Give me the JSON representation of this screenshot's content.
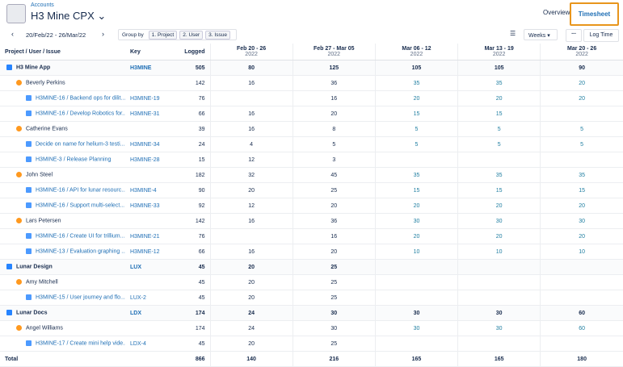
{
  "header": {
    "breadcrumb": "Accounts",
    "title": "H3 Mine CPX",
    "tabs": [
      "Overview",
      "Timesheet"
    ]
  },
  "toolbar": {
    "date_range": "20/Feb/22 - 26/Mar/22",
    "group_by": "Group by",
    "chips": [
      "1. Project",
      "2. User",
      "3. Issue"
    ],
    "period": "Weeks",
    "more": "...",
    "log_time": "Log Time"
  },
  "table": {
    "columns": [
      "Project / User / Issue",
      "Key",
      "Logged"
    ],
    "weeks": [
      {
        "range": "Feb 20 - 26",
        "year": "2022"
      },
      {
        "range": "Feb 27 - Mar 05",
        "year": "2022"
      },
      {
        "range": "Mar 06 - 12",
        "year": "2022"
      },
      {
        "range": "Mar 13 - 19",
        "year": "2022"
      },
      {
        "range": "Mar 20 - 26",
        "year": "2022"
      }
    ],
    "rows": [
      {
        "level": "project",
        "name": "H3 Mine App",
        "key": "H3MINE",
        "logged": 505,
        "weeks": [
          80,
          125,
          105,
          105,
          90
        ]
      },
      {
        "level": "user",
        "name": "Beverly Perkins",
        "key": null,
        "logged": 142,
        "weeks": [
          16,
          36,
          35,
          35,
          20
        ]
      },
      {
        "level": "issue",
        "name": "H3MINE-16 / Backend ops for dilit...",
        "key": "H3MINE-19",
        "logged": 76,
        "weeks": [
          null,
          16,
          20,
          20,
          20
        ]
      },
      {
        "level": "issue",
        "name": "H3MINE-16 / Develop Robotics for...",
        "key": "H3MINE-31",
        "logged": 66,
        "weeks": [
          16,
          20,
          15,
          15,
          null
        ]
      },
      {
        "level": "user",
        "name": "Catherine Evans",
        "key": null,
        "logged": 39,
        "weeks": [
          16,
          8,
          5,
          5,
          5
        ]
      },
      {
        "level": "issue",
        "name": "Decide on name for helium-3 testi...",
        "key": "H3MINE-34",
        "logged": 24,
        "weeks": [
          4,
          5,
          5,
          5,
          5
        ]
      },
      {
        "level": "issue",
        "name": "H3MINE-3 / Release Planning",
        "key": "H3MINE-28",
        "logged": 15,
        "weeks": [
          12,
          3,
          null,
          null,
          null
        ]
      },
      {
        "level": "user",
        "name": "John Steel",
        "key": null,
        "logged": 182,
        "weeks": [
          32,
          45,
          35,
          35,
          35
        ]
      },
      {
        "level": "issue",
        "name": "H3MINE-16 / API for lunar resourc...",
        "key": "H3MINE-4",
        "logged": 90,
        "weeks": [
          20,
          25,
          15,
          15,
          15
        ]
      },
      {
        "level": "issue",
        "name": "H3MINE-16 / Support multi-select...",
        "key": "H3MINE-33",
        "logged": 92,
        "weeks": [
          12,
          20,
          20,
          20,
          20
        ]
      },
      {
        "level": "user",
        "name": "Lars Petersen",
        "key": null,
        "logged": 142,
        "weeks": [
          16,
          36,
          30,
          30,
          30
        ]
      },
      {
        "level": "issue",
        "name": "H3MINE-16 / Create UI for trillium...",
        "key": "H3MINE-21",
        "logged": 76,
        "weeks": [
          null,
          16,
          20,
          20,
          20
        ]
      },
      {
        "level": "issue",
        "name": "H3MINE-13 / Evaluation graphing ...",
        "key": "H3MINE-12",
        "logged": 66,
        "weeks": [
          16,
          20,
          10,
          10,
          10
        ]
      },
      {
        "level": "project",
        "name": "Lunar Design",
        "key": "LUX",
        "logged": 45,
        "weeks": [
          20,
          25,
          null,
          null,
          null
        ]
      },
      {
        "level": "user",
        "name": "Amy Mitchell",
        "key": null,
        "logged": 45,
        "weeks": [
          20,
          25,
          null,
          null,
          null
        ]
      },
      {
        "level": "issue",
        "name": "H3MINE-15 / User journey and flo...",
        "key": "LUX-2",
        "logged": 45,
        "weeks": [
          20,
          25,
          null,
          null,
          null
        ]
      },
      {
        "level": "project",
        "name": "Lunar Docs",
        "key": "LDX",
        "logged": 174,
        "weeks": [
          24,
          30,
          30,
          30,
          60
        ]
      },
      {
        "level": "user",
        "name": "Angel Williams",
        "key": null,
        "logged": 174,
        "weeks": [
          24,
          30,
          30,
          30,
          60
        ]
      },
      {
        "level": "issue",
        "name": "H3MINE-17 / Create mini help vide...",
        "key": "LDX-4",
        "logged": 45,
        "weeks": [
          20,
          25,
          null,
          null,
          null
        ]
      }
    ],
    "total": {
      "label": "Total",
      "logged": 866,
      "weeks": [
        140,
        216,
        165,
        165,
        180
      ]
    }
  }
}
